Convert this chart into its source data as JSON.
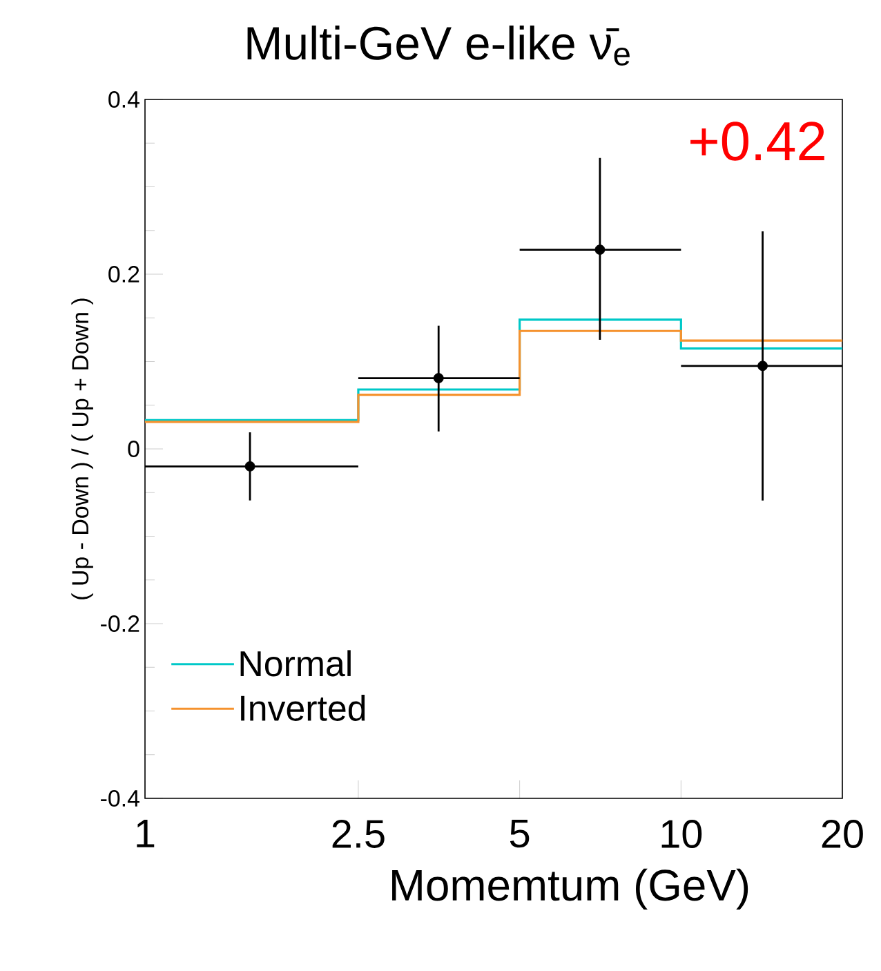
{
  "chart_data": {
    "type": "step",
    "title": "Multi-GeV e-like ν̄$_{e}$",
    "xlabel": "Momemtum (GeV)",
    "ylabel": "( Up - Down ) / ( Up + Down )",
    "annotations": [
      "+0.42"
    ],
    "log": "x",
    "xlim": [
      1,
      20
    ],
    "xticks": [
      1,
      2.5,
      5,
      10,
      20
    ],
    "ylim": [
      -0.4,
      0.4
    ],
    "yticks": [
      -0.4,
      -0.2,
      0,
      0.2,
      0.4
    ],
    "grid": false,
    "legend": "bottom left",
    "series": [
      {
        "name": "Normal",
        "color": "#00c8c8",
        "x": [
          1,
          2.5,
          5,
          10,
          20
        ],
        "values": [
          0.033,
          0.068,
          0.148,
          0.115,
          0.115
        ]
      },
      {
        "name": "Inverted",
        "color": "#f5922e",
        "x": [
          1,
          2.5,
          5,
          10,
          20
        ],
        "values": [
          0.031,
          0.062,
          0.135,
          0.124,
          0.124
        ]
      },
      {
        "type": "scatter",
        "color": "#000000",
        "marker": "circle",
        "x": [
          1.57,
          3.53,
          7.06,
          14.2
        ],
        "values": [
          -0.02,
          0.081,
          0.228,
          0.095
        ],
        "errors": [
          [
            -0.059,
            0.019
          ],
          [
            0.02,
            0.141
          ],
          [
            0.125,
            0.333
          ],
          [
            -0.059,
            0.249
          ]
        ],
        "xerrors": [
          [
            1,
            2.5
          ],
          [
            2.5,
            5
          ],
          [
            5,
            10
          ],
          [
            10,
            20
          ]
        ]
      }
    ]
  }
}
